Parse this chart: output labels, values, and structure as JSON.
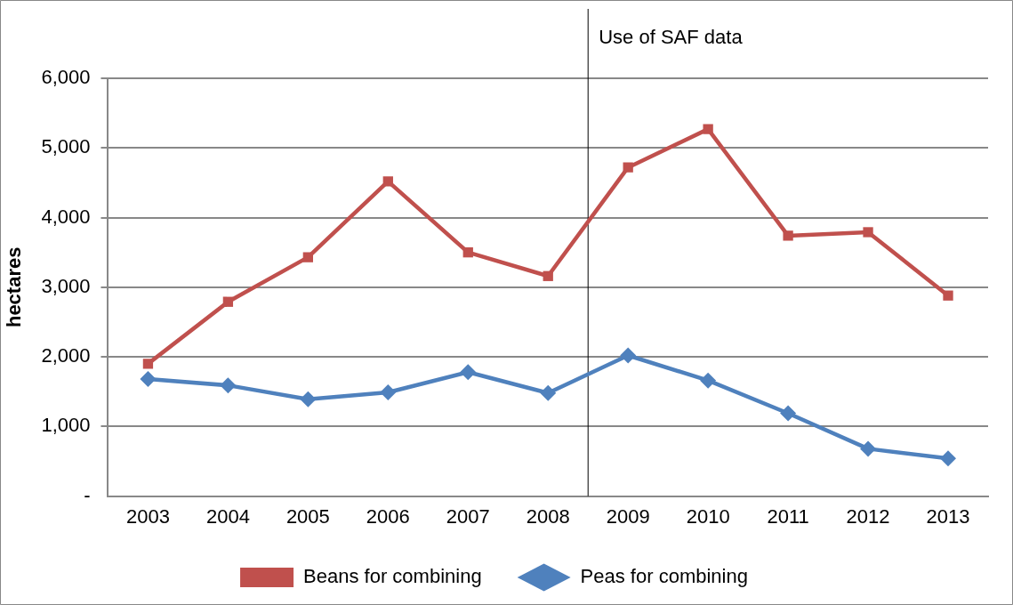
{
  "chart_data": {
    "type": "line",
    "ylabel": "hectares",
    "x": [
      2003,
      2004,
      2005,
      2006,
      2007,
      2008,
      2009,
      2010,
      2011,
      2012,
      2013
    ],
    "xlim": [
      2002.5,
      2013.5
    ],
    "xticks": [
      2003,
      2004,
      2005,
      2006,
      2007,
      2008,
      2009,
      2010,
      2011,
      2012,
      2013
    ],
    "ylim": [
      0,
      6000
    ],
    "yticks": [
      {
        "value": 0,
        "label": "-"
      },
      {
        "value": 1000,
        "label": "1,000"
      },
      {
        "value": 2000,
        "label": "2,000"
      },
      {
        "value": 3000,
        "label": "3,000"
      },
      {
        "value": 4000,
        "label": "4,000"
      },
      {
        "value": 5000,
        "label": "5,000"
      },
      {
        "value": 6000,
        "label": "6,000"
      }
    ],
    "series": [
      {
        "name": "Beans for combining",
        "color": "#c0504d",
        "marker": "square",
        "values": [
          1900,
          2790,
          3430,
          4520,
          3500,
          3160,
          4720,
          5270,
          3740,
          3790,
          2880
        ]
      },
      {
        "name": "Peas for combining",
        "color": "#4f81bd",
        "marker": "diamond",
        "values": [
          1680,
          1590,
          1390,
          1490,
          1780,
          1480,
          2020,
          1660,
          1190,
          680,
          540
        ]
      }
    ],
    "ref_lines": [
      {
        "axis": "x",
        "value": 2008.5,
        "label": "Use of SAF data",
        "color": "#000000"
      }
    ],
    "grid": "y",
    "legend": "bottom",
    "line_style": "solid"
  }
}
